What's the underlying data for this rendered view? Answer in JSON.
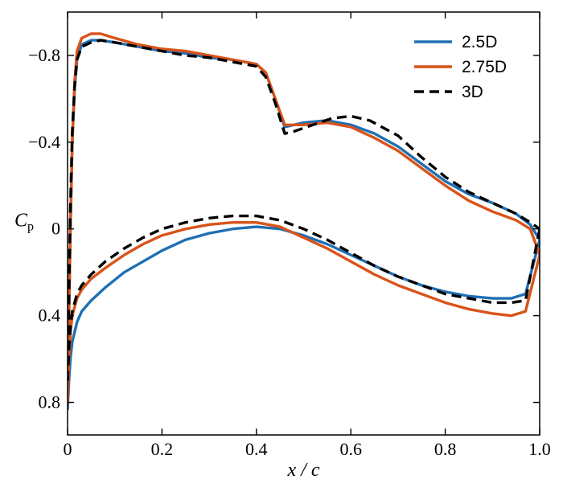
{
  "chart_data": {
    "type": "line",
    "title": "",
    "xlabel": "x / c",
    "ylabel_main": "C",
    "ylabel_sub": "p",
    "xlim": [
      0,
      1.0
    ],
    "ylim": [
      -1.0,
      0.95
    ],
    "y_inverted": true,
    "x_ticks": [
      0,
      0.2,
      0.4,
      0.6,
      0.8,
      1.0
    ],
    "x_tick_labels": [
      "0",
      "0.2",
      "0.4",
      "0.6",
      "0.8",
      "1.0"
    ],
    "y_ticks": [
      -0.8,
      -0.4,
      0,
      0.4,
      0.8
    ],
    "y_tick_labels": [
      "−0.8",
      "−0.4",
      "0",
      "0.4",
      "0.8"
    ],
    "grid": false,
    "legend_position": "top-right",
    "series": [
      {
        "name": "2.5D",
        "color": "#1f6fb4",
        "dash": "solid",
        "upper": {
          "x": [
            0.0,
            0.003,
            0.006,
            0.01,
            0.015,
            0.02,
            0.03,
            0.05,
            0.07,
            0.1,
            0.15,
            0.2,
            0.25,
            0.3,
            0.35,
            0.4,
            0.42,
            0.44,
            0.46,
            0.5,
            0.55,
            0.6,
            0.65,
            0.7,
            0.75,
            0.8,
            0.85,
            0.9,
            0.95,
            0.98,
            1.0
          ],
          "y": [
            0.83,
            0.4,
            0.0,
            -0.4,
            -0.65,
            -0.78,
            -0.85,
            -0.87,
            -0.87,
            -0.86,
            -0.84,
            -0.82,
            -0.81,
            -0.79,
            -0.78,
            -0.76,
            -0.72,
            -0.6,
            -0.47,
            -0.49,
            -0.5,
            -0.48,
            -0.44,
            -0.38,
            -0.3,
            -0.22,
            -0.16,
            -0.12,
            -0.07,
            -0.02,
            0.05
          ]
        },
        "lower": {
          "x": [
            0.0,
            0.003,
            0.006,
            0.01,
            0.02,
            0.03,
            0.05,
            0.08,
            0.12,
            0.16,
            0.2,
            0.25,
            0.3,
            0.35,
            0.4,
            0.45,
            0.5,
            0.55,
            0.6,
            0.65,
            0.7,
            0.75,
            0.8,
            0.85,
            0.9,
            0.94,
            0.97,
            1.0
          ],
          "y": [
            0.83,
            0.7,
            0.6,
            0.52,
            0.43,
            0.38,
            0.33,
            0.27,
            0.2,
            0.15,
            0.1,
            0.05,
            0.02,
            0.0,
            -0.01,
            0.0,
            0.03,
            0.07,
            0.12,
            0.17,
            0.22,
            0.26,
            0.29,
            0.31,
            0.32,
            0.32,
            0.3,
            0.05
          ]
        }
      },
      {
        "name": "2.75D",
        "color": "#d95319",
        "dash": "solid",
        "upper": {
          "x": [
            0.0,
            0.003,
            0.006,
            0.01,
            0.015,
            0.02,
            0.03,
            0.05,
            0.07,
            0.1,
            0.15,
            0.2,
            0.25,
            0.3,
            0.35,
            0.4,
            0.42,
            0.44,
            0.46,
            0.5,
            0.55,
            0.6,
            0.65,
            0.7,
            0.75,
            0.8,
            0.85,
            0.9,
            0.95,
            0.98,
            1.0
          ],
          "y": [
            0.8,
            0.4,
            0.0,
            -0.4,
            -0.68,
            -0.82,
            -0.88,
            -0.9,
            -0.9,
            -0.88,
            -0.85,
            -0.83,
            -0.82,
            -0.8,
            -0.78,
            -0.76,
            -0.72,
            -0.6,
            -0.48,
            -0.48,
            -0.49,
            -0.47,
            -0.42,
            -0.36,
            -0.28,
            -0.2,
            -0.13,
            -0.08,
            -0.04,
            0.0,
            0.12
          ]
        },
        "lower": {
          "x": [
            0.0,
            0.003,
            0.006,
            0.01,
            0.02,
            0.03,
            0.05,
            0.08,
            0.12,
            0.16,
            0.2,
            0.25,
            0.3,
            0.35,
            0.4,
            0.45,
            0.5,
            0.55,
            0.6,
            0.65,
            0.7,
            0.75,
            0.8,
            0.85,
            0.9,
            0.94,
            0.97,
            1.0
          ],
          "y": [
            0.8,
            0.6,
            0.48,
            0.4,
            0.32,
            0.28,
            0.23,
            0.18,
            0.12,
            0.07,
            0.03,
            0.0,
            -0.02,
            -0.03,
            -0.03,
            -0.01,
            0.04,
            0.09,
            0.15,
            0.21,
            0.26,
            0.3,
            0.34,
            0.37,
            0.39,
            0.4,
            0.38,
            0.12
          ]
        }
      },
      {
        "name": "3D",
        "color": "#000000",
        "dash": "dashed",
        "upper": {
          "x": [
            0.0,
            0.003,
            0.006,
            0.01,
            0.015,
            0.02,
            0.03,
            0.05,
            0.07,
            0.1,
            0.15,
            0.2,
            0.25,
            0.3,
            0.35,
            0.4,
            0.42,
            0.44,
            0.46,
            0.48,
            0.52,
            0.56,
            0.6,
            0.64,
            0.7,
            0.75,
            0.8,
            0.85,
            0.9,
            0.95,
            0.98,
            1.0
          ],
          "y": [
            0.7,
            0.3,
            -0.1,
            -0.45,
            -0.66,
            -0.78,
            -0.84,
            -0.86,
            -0.87,
            -0.86,
            -0.84,
            -0.82,
            -0.8,
            -0.79,
            -0.77,
            -0.75,
            -0.7,
            -0.58,
            -0.44,
            -0.45,
            -0.48,
            -0.51,
            -0.52,
            -0.5,
            -0.43,
            -0.33,
            -0.24,
            -0.17,
            -0.12,
            -0.07,
            -0.03,
            0.0
          ]
        },
        "lower": {
          "x": [
            0.0,
            0.003,
            0.006,
            0.01,
            0.02,
            0.03,
            0.05,
            0.08,
            0.12,
            0.16,
            0.2,
            0.25,
            0.3,
            0.35,
            0.4,
            0.45,
            0.5,
            0.55,
            0.6,
            0.65,
            0.7,
            0.75,
            0.8,
            0.85,
            0.9,
            0.94,
            0.97,
            1.0
          ],
          "y": [
            0.7,
            0.55,
            0.45,
            0.38,
            0.3,
            0.26,
            0.21,
            0.15,
            0.09,
            0.04,
            0.0,
            -0.03,
            -0.05,
            -0.06,
            -0.06,
            -0.04,
            0.0,
            0.05,
            0.11,
            0.17,
            0.22,
            0.26,
            0.3,
            0.32,
            0.34,
            0.34,
            0.33,
            0.0
          ]
        }
      }
    ]
  }
}
